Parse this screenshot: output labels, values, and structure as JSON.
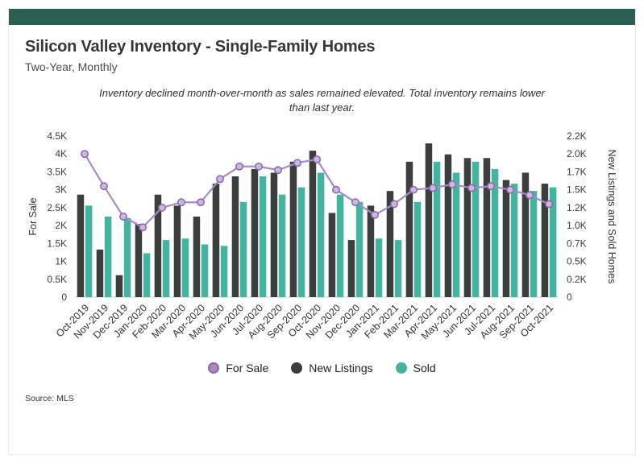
{
  "header": {
    "title": "Silicon Valley Inventory - Single-Family Homes",
    "subtitle": "Two-Year, Monthly",
    "annotation_line1": "Inventory declined month-over-month as sales remained elevated. Total inventory remains lower",
    "annotation_line2": "than last year."
  },
  "footer": {
    "source": "Source:  MLS"
  },
  "colors": {
    "accent_bar": "#2c5f53",
    "for_sale_line": "#a78bc4",
    "for_sale_marker_fill": "#cbb7e0",
    "for_sale_marker_stroke": "#8a68ab",
    "new_listings": "#3d3d3d",
    "sold": "#45b49e",
    "axis_text": "#3a3a3a",
    "baseline": "#cccccc"
  },
  "chart_data": {
    "type": "bar",
    "subtype": "combo-bar-line",
    "title": "Silicon Valley Inventory - Single-Family Homes",
    "categories": [
      "Oct-2019",
      "Nov-2019",
      "Dec-2019",
      "Jan-2020",
      "Feb-2020",
      "Mar-2020",
      "Apr-2020",
      "May-2020",
      "Jun-2020",
      "Jul-2020",
      "Aug-2020",
      "Sep-2020",
      "Oct-2020",
      "Nov-2020",
      "Dec-2020",
      "Jan-2021",
      "Feb-2021",
      "Mar-2021",
      "Apr-2021",
      "May-2021",
      "Jun-2021",
      "Jul-2021",
      "Aug-2021",
      "Sep-2021",
      "Oct-2021"
    ],
    "series": [
      {
        "name": "For Sale",
        "type": "line",
        "axis": "left",
        "values": [
          4000,
          3100,
          2250,
          1950,
          2500,
          2650,
          2650,
          3300,
          3650,
          3650,
          3550,
          3750,
          3850,
          3000,
          2650,
          2300,
          2600,
          3000,
          3050,
          3150,
          3050,
          3100,
          3000,
          2850,
          2600
        ]
      },
      {
        "name": "New Listings",
        "type": "bar",
        "axis": "right",
        "values": [
          1400,
          650,
          300,
          1000,
          1400,
          1250,
          1100,
          1550,
          1650,
          1750,
          1700,
          1850,
          2000,
          1150,
          780,
          1250,
          1450,
          1850,
          2100,
          1950,
          1900,
          1900,
          1600,
          1700,
          1550
        ]
      },
      {
        "name": "Sold",
        "type": "bar",
        "axis": "right",
        "values": [
          1250,
          1100,
          1080,
          600,
          780,
          800,
          720,
          700,
          1300,
          1650,
          1400,
          1500,
          1700,
          1400,
          1300,
          800,
          780,
          1300,
          1850,
          1700,
          1850,
          1750,
          1550,
          1450,
          1500
        ]
      }
    ],
    "left_axis": {
      "label": "For Sale",
      "max": 4500,
      "ticks": [
        "0",
        "0.5K",
        "1K",
        "1.5K",
        "2K",
        "2.5K",
        "3K",
        "3.5K",
        "4K",
        "4.5K"
      ]
    },
    "right_axis": {
      "label": "New Listings and Sold Homes",
      "max": 2200,
      "ticks": [
        "0",
        "0.2K",
        "0.5K",
        "0.7K",
        "1.0K",
        "1.2K",
        "1.5K",
        "1.7K",
        "2.0K",
        "2.2K"
      ]
    },
    "grid": false,
    "legend_position": "bottom"
  }
}
